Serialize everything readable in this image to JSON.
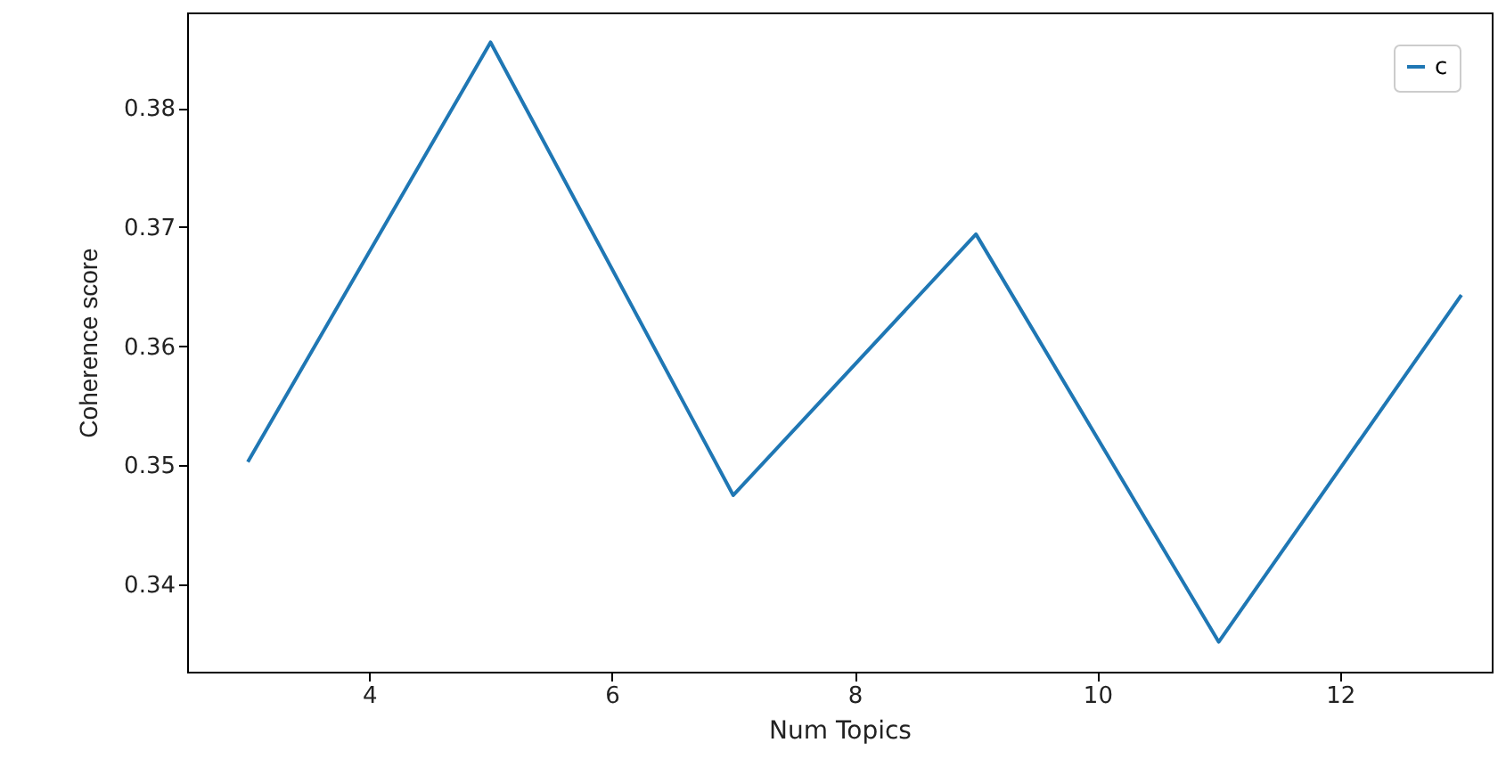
{
  "chart_data": {
    "type": "line",
    "xlabel": "Num Topics",
    "ylabel": "Coherence score",
    "x": [
      3,
      5,
      7,
      9,
      11,
      13
    ],
    "series": [
      {
        "name": "c",
        "color": "#1f77b4",
        "values": [
          0.3503,
          0.3855,
          0.3475,
          0.3694,
          0.3352,
          0.3643
        ]
      }
    ],
    "xlim": [
      2.5,
      13.25
    ],
    "ylim": [
      0.3327,
      0.388
    ],
    "xticks": [
      4,
      6,
      8,
      10,
      12
    ],
    "yticks": [
      0.34,
      0.35,
      0.36,
      0.37,
      0.38
    ],
    "legend": "top right",
    "grid": false,
    "marker": "none",
    "line_style": "solid"
  }
}
